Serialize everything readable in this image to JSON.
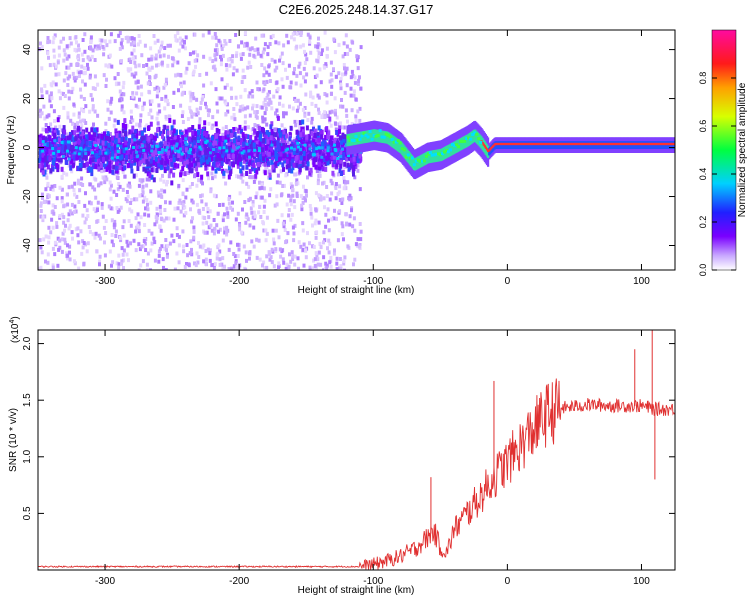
{
  "title": "C2E6.2025.248.14.37.G17",
  "chart_data": [
    {
      "type": "heatmap",
      "name": "spectrogram",
      "xlabel": "Height of straight line (km)",
      "ylabel": "Frequency (Hz)",
      "xlim": [
        -350,
        125
      ],
      "ylim": [
        -50,
        48
      ],
      "xticks": [
        -300,
        -200,
        -100,
        0,
        100
      ],
      "yticks": [
        -40,
        -20,
        0,
        20,
        40
      ],
      "colorbar": {
        "label": "Normalized spectral amplitude",
        "range": [
          0,
          1
        ],
        "ticks": [
          "0.0",
          "0.2",
          "0.4",
          "0.6",
          "0.8"
        ],
        "tick_values": [
          0.0,
          0.2,
          0.4,
          0.6,
          0.8
        ],
        "colormap": "rainbow (purple-blue-cyan-green-yellow-red-magenta)"
      },
      "signal_track": {
        "x": [
          -120,
          -110,
          -100,
          -90,
          -80,
          -70,
          -60,
          -50,
          -40,
          -30,
          -25,
          -20,
          -15,
          -10,
          0,
          125
        ],
        "freq": [
          3,
          4,
          5,
          4,
          0,
          -7,
          -4,
          -3,
          0,
          3,
          5,
          2,
          -2,
          1,
          1,
          1
        ]
      }
    },
    {
      "type": "line",
      "name": "snr",
      "xlabel": "Height of straight line (km)",
      "ylabel": "SNR (10 * v/v)",
      "y_multiplier": "(x10",
      "y_multiplier_exp": "4",
      "y_multiplier_close": ")",
      "xlim": [
        -350,
        125
      ],
      "ylim": [
        0,
        2.12
      ],
      "xticks": [
        -300,
        -200,
        -100,
        0,
        100
      ],
      "yticks": [
        0.5,
        1.0,
        1.5,
        2.0
      ],
      "ytick_labels": [
        "0.5",
        "1.0",
        "1.5",
        "2.0"
      ],
      "color": "#e03030",
      "trend": {
        "x": [
          -350,
          -110,
          -100,
          -90,
          -80,
          -70,
          -60,
          -55,
          -50,
          -45,
          -40,
          -30,
          -20,
          -10,
          0,
          10,
          20,
          30,
          40,
          60,
          80,
          100,
          110,
          125
        ],
        "y": [
          0.03,
          0.03,
          0.05,
          0.08,
          0.12,
          0.18,
          0.28,
          0.35,
          0.2,
          0.15,
          0.35,
          0.5,
          0.65,
          0.82,
          0.95,
          1.1,
          1.25,
          1.38,
          1.43,
          1.46,
          1.45,
          1.45,
          1.42,
          1.42
        ]
      },
      "spikes": [
        {
          "x": -57,
          "y": 0.82
        },
        {
          "x": -10,
          "y": 1.67
        },
        {
          "x": 95,
          "y": 1.95
        },
        {
          "x": 108,
          "y": 2.12
        },
        {
          "x": 110,
          "y": 0.8
        }
      ]
    }
  ]
}
